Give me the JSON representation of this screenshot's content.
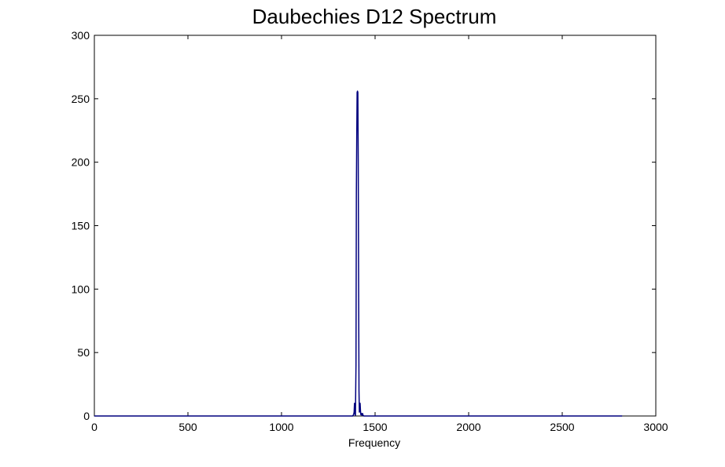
{
  "chart_data": {
    "type": "line",
    "title": "Daubechies D12 Spectrum",
    "xlabel": "Frequency",
    "ylabel": "",
    "xlim": [
      0,
      3000
    ],
    "ylim": [
      0,
      300
    ],
    "xticks": [
      0,
      500,
      1000,
      1500,
      2000,
      2500,
      3000
    ],
    "yticks": [
      0,
      50,
      100,
      150,
      200,
      250,
      300
    ],
    "xtick_labels": [
      "0",
      "500",
      "1000",
      "1500",
      "2000",
      "2500",
      "3000"
    ],
    "ytick_labels": [
      "0",
      "50",
      "100",
      "150",
      "200",
      "250",
      "300"
    ],
    "grid": false,
    "legend": "none",
    "line_color": "#00007f",
    "series": [
      {
        "x": [
          0,
          1380,
          1385,
          1388,
          1390,
          1392,
          1395,
          1398,
          1400,
          1402,
          1404,
          1406,
          1408,
          1410,
          1412,
          1414,
          1416,
          1418,
          1420,
          1422,
          1424,
          1426,
          1430,
          1433,
          1436,
          1440,
          2820
        ],
        "values": [
          0,
          0,
          1,
          3,
          10,
          2,
          0.5,
          40,
          175,
          220,
          255,
          256,
          255,
          200,
          105,
          20,
          3,
          9,
          10,
          4,
          1,
          2,
          0.5,
          2,
          0.5,
          0,
          0
        ]
      }
    ]
  }
}
